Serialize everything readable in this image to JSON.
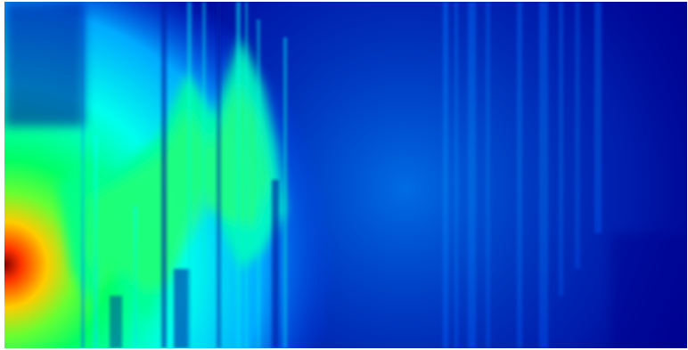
{
  "image": {
    "kind": "wave field intensity visualization",
    "colormap": "jet",
    "colors": {
      "min": "#00007f",
      "low": "#0050ff",
      "mid": "#00ffff",
      "upper": "#00ff66",
      "high": "#ffff00",
      "peak": "#ff3300",
      "max": "#7f0000",
      "frame": "#ffffff"
    },
    "source_side": "left",
    "text_labels": []
  }
}
